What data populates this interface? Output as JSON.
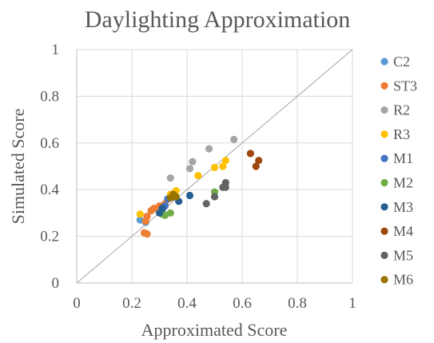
{
  "chart_data": {
    "type": "scatter",
    "title": "Daylighting Approximation",
    "xlabel": "Approximated Score",
    "ylabel": "Simulated Score",
    "xlim": [
      0,
      1
    ],
    "ylim": [
      0,
      1
    ],
    "x_ticks": [
      "0",
      "0.2",
      "0.4",
      "0.6",
      "0.8",
      "1"
    ],
    "y_ticks": [
      "0",
      "0.2",
      "0.4",
      "0.6",
      "0.8",
      "1"
    ],
    "grid": true,
    "reference_line": {
      "from": [
        0,
        0
      ],
      "to": [
        1,
        1
      ],
      "color": "#a6a6a6"
    },
    "legend_position": "right",
    "series": [
      {
        "name": "C2",
        "color": "#5b9bd5",
        "points": [
          [
            0.23,
            0.27
          ],
          [
            0.25,
            0.26
          ],
          [
            0.27,
            0.31
          ]
        ]
      },
      {
        "name": "ST3",
        "color": "#ed7d31",
        "points": [
          [
            0.245,
            0.215
          ],
          [
            0.255,
            0.21
          ],
          [
            0.25,
            0.265
          ],
          [
            0.255,
            0.285
          ],
          [
            0.27,
            0.31
          ],
          [
            0.28,
            0.32
          ],
          [
            0.3,
            0.33
          ],
          [
            0.32,
            0.34
          ]
        ]
      },
      {
        "name": "R2",
        "color": "#a5a5a5",
        "points": [
          [
            0.34,
            0.45
          ],
          [
            0.41,
            0.49
          ],
          [
            0.42,
            0.52
          ],
          [
            0.48,
            0.575
          ],
          [
            0.57,
            0.615
          ]
        ]
      },
      {
        "name": "R3",
        "color": "#ffc000",
        "points": [
          [
            0.23,
            0.295
          ],
          [
            0.34,
            0.38
          ],
          [
            0.36,
            0.395
          ],
          [
            0.44,
            0.46
          ],
          [
            0.5,
            0.495
          ],
          [
            0.53,
            0.5
          ],
          [
            0.54,
            0.525
          ]
        ]
      },
      {
        "name": "M1",
        "color": "#4472c4",
        "points": [
          [
            0.31,
            0.31
          ],
          [
            0.32,
            0.33
          ],
          [
            0.33,
            0.36
          ],
          [
            0.35,
            0.37
          ]
        ]
      },
      {
        "name": "M2",
        "color": "#70ad47",
        "points": [
          [
            0.31,
            0.295
          ],
          [
            0.32,
            0.29
          ],
          [
            0.34,
            0.3
          ],
          [
            0.5,
            0.39
          ]
        ]
      },
      {
        "name": "M3",
        "color": "#255e91",
        "points": [
          [
            0.3,
            0.3
          ],
          [
            0.31,
            0.32
          ],
          [
            0.37,
            0.35
          ],
          [
            0.41,
            0.375
          ]
        ]
      },
      {
        "name": "M4",
        "color": "#9e480e",
        "points": [
          [
            0.63,
            0.555
          ],
          [
            0.65,
            0.5
          ],
          [
            0.66,
            0.525
          ]
        ]
      },
      {
        "name": "M5",
        "color": "#636363",
        "points": [
          [
            0.47,
            0.34
          ],
          [
            0.5,
            0.37
          ],
          [
            0.53,
            0.41
          ],
          [
            0.54,
            0.41
          ],
          [
            0.54,
            0.43
          ]
        ]
      },
      {
        "name": "M6",
        "color": "#997300",
        "points": [
          [
            0.34,
            0.365
          ],
          [
            0.35,
            0.38
          ],
          [
            0.36,
            0.37
          ]
        ]
      }
    ]
  }
}
